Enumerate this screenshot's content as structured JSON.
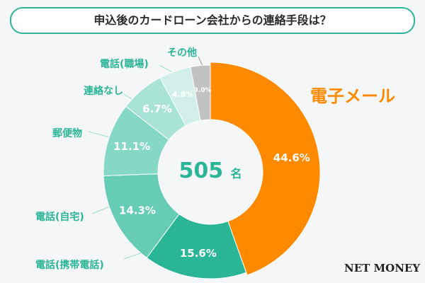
{
  "chart_data": {
    "type": "pie",
    "title": "申込後のカードローン会社からの連絡手段は？",
    "center_value": "505",
    "center_unit": "名",
    "slices": [
      {
        "label": "電子メール",
        "value": 44.6,
        "color": "#ff8a00"
      },
      {
        "label": "電話(携帯電話)",
        "value": 15.6,
        "color": "#2bb597"
      },
      {
        "label": "電話(自宅)",
        "value": 14.3,
        "color": "#66ccb6"
      },
      {
        "label": "郵便物",
        "value": 11.1,
        "color": "#86d8c6"
      },
      {
        "label": "連絡なし",
        "value": 6.7,
        "color": "#a8e3d6"
      },
      {
        "label": "電話(職場)",
        "value": 4.8,
        "color": "#d2f0e9"
      },
      {
        "label": "その他",
        "value": 3.0,
        "color": "#c2c2c2"
      }
    ]
  },
  "logo": "NET MONEY"
}
